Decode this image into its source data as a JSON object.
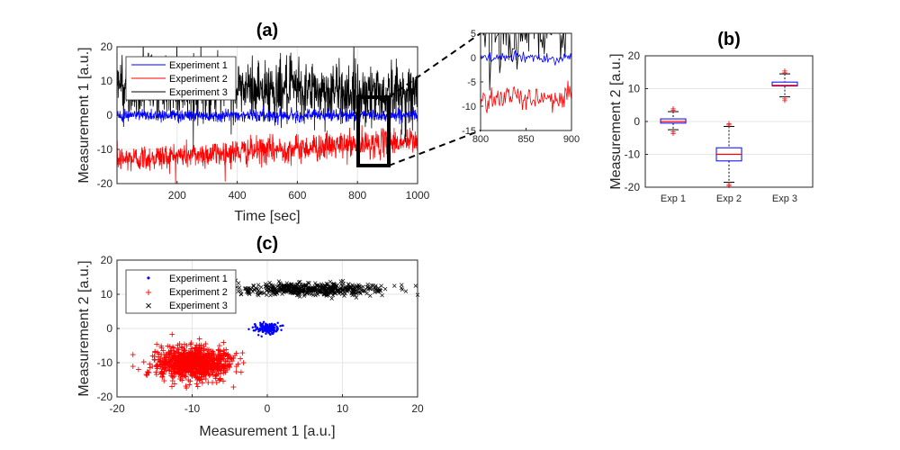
{
  "chart_data": [
    {
      "panel": "(a)",
      "type": "line",
      "title": "(a)",
      "xlabel": "Time [sec]",
      "ylabel": "Measurement 1 [a.u.]",
      "xlim": [
        0,
        1000
      ],
      "ylim": [
        -20,
        20
      ],
      "xticks": [
        200,
        400,
        600,
        800,
        1000
      ],
      "yticks": [
        -20,
        -10,
        0,
        10,
        20
      ],
      "grid": true,
      "legend_position": "top-left",
      "series": [
        {
          "name": "Experiment 1",
          "color": "#0000ff",
          "mean": 0,
          "std": 0.9,
          "trend": [
            0,
            0
          ]
        },
        {
          "name": "Experiment 2",
          "color": "#ff0000",
          "mean": -10,
          "std": 2,
          "trend": [
            -13,
            -7.5
          ]
        },
        {
          "name": "Experiment 3",
          "color": "#000000",
          "mean": 8,
          "std": 4.5,
          "trend": [
            9,
            6
          ]
        }
      ],
      "inset": {
        "xlim": [
          800,
          900
        ],
        "ylim": [
          -15,
          5
        ],
        "xticks": [
          800,
          850,
          900
        ],
        "yticks": [
          -15,
          -10,
          -5,
          0,
          5
        ],
        "zoom_box": {
          "x": [
            800,
            890
          ],
          "y": [
            -15,
            5
          ]
        }
      }
    },
    {
      "panel": "(b)",
      "type": "box",
      "title": "(b)",
      "ylabel": "Measurement 2 [a.u.]",
      "categories": [
        "Exp 1",
        "Exp 2",
        "Exp 3"
      ],
      "ylim": [
        -20,
        20
      ],
      "yticks": [
        -20,
        -10,
        0,
        10,
        20
      ],
      "grid": true,
      "boxes": [
        {
          "name": "Exp 1",
          "whisker_low": -2.5,
          "q1": -0.5,
          "median": 0,
          "q3": 0.8,
          "whisker_high": 3
        },
        {
          "name": "Exp 2",
          "whisker_low": -18.5,
          "q1": -12,
          "median": -10,
          "q3": -8,
          "whisker_high": -1.5
        },
        {
          "name": "Exp 3",
          "whisker_low": 7.5,
          "q1": 10.8,
          "median": 11,
          "q3": 12,
          "whisker_high": 14.5
        }
      ],
      "box_color": "#0000ff",
      "median_color": "#ff0000",
      "outlier_color": "#ff0000"
    },
    {
      "panel": "(c)",
      "type": "scatter",
      "title": "(c)",
      "xlabel": "Measurement 1 [a.u.]",
      "ylabel": "Measurement 2 [a.u.]",
      "xlim": [
        -20,
        20
      ],
      "ylim": [
        -20,
        20
      ],
      "xticks": [
        -20,
        -10,
        0,
        10,
        20
      ],
      "yticks": [
        -20,
        -10,
        0,
        10,
        20
      ],
      "grid": true,
      "legend_position": "top-left",
      "series": [
        {
          "name": "Experiment 1",
          "color": "#0000ff",
          "marker": "•",
          "center": [
            0,
            0
          ],
          "spread": [
            0.7,
            0.7
          ]
        },
        {
          "name": "Experiment 2",
          "color": "#ff0000",
          "marker": "+",
          "center": [
            -10,
            -10
          ],
          "spread": [
            2.3,
            2.3
          ]
        },
        {
          "name": "Experiment 3",
          "color": "#000000",
          "marker": "×",
          "center": [
            6,
            11.5
          ],
          "spread": [
            5,
            0.9
          ]
        }
      ]
    }
  ]
}
